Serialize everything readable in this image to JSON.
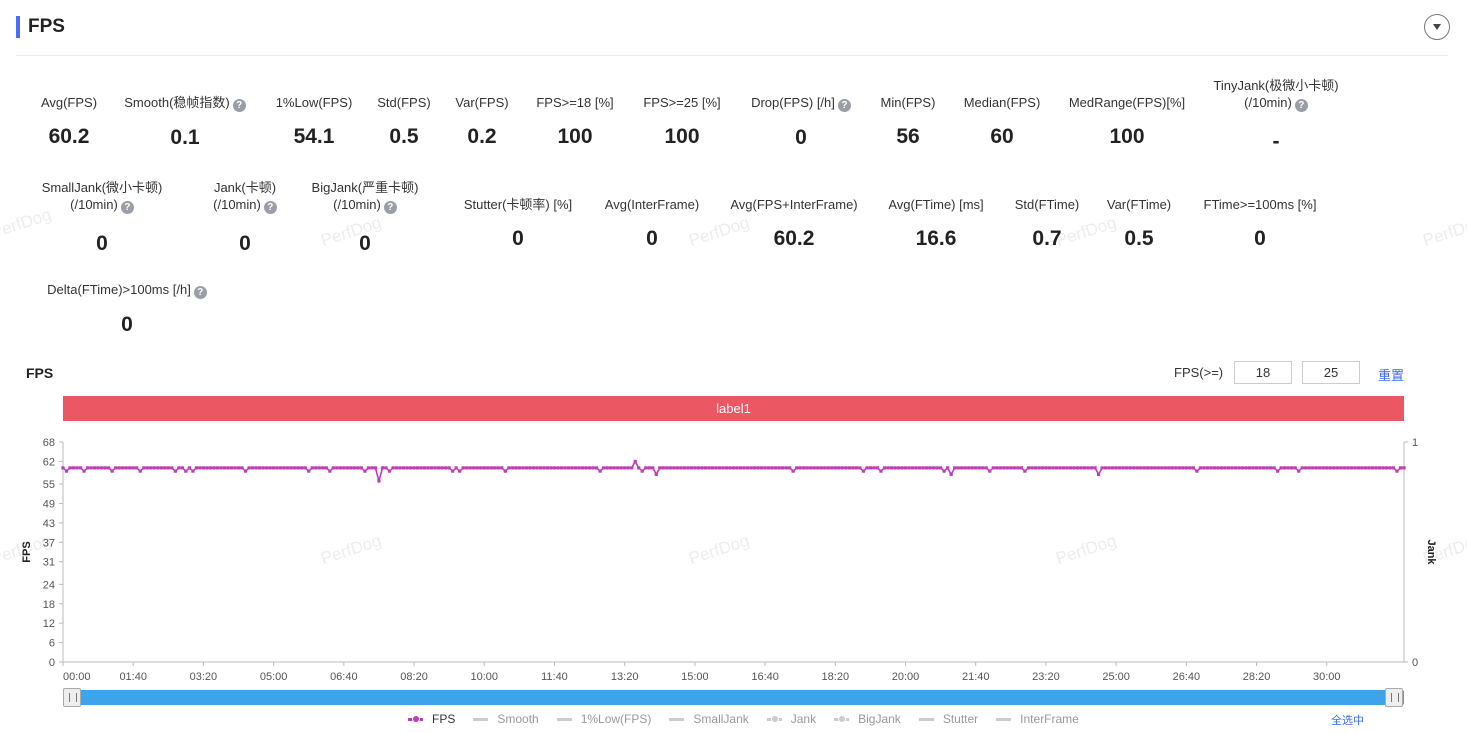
{
  "header": {
    "title": "FPS"
  },
  "stats": [
    {
      "label": "Avg(FPS)",
      "value": "60.2"
    },
    {
      "label": "Smooth(稳帧指数)",
      "value": "0.1"
    },
    {
      "label": "1%Low(FPS)",
      "value": "54.1"
    },
    {
      "label": "Std(FPS)",
      "value": "0.5"
    },
    {
      "label": "Var(FPS)",
      "value": "0.2"
    },
    {
      "label": "FPS>=18 [%]",
      "value": "100"
    },
    {
      "label": "FPS>=25 [%]",
      "value": "100"
    },
    {
      "label": "Drop(FPS) [/h]",
      "value": "0"
    },
    {
      "label": "Min(FPS)",
      "value": "56"
    },
    {
      "label": "Median(FPS)",
      "value": "60"
    },
    {
      "label": "MedRange(FPS)[%]",
      "value": "100"
    },
    {
      "label": "TinyJank(极微小卡顿)",
      "label2": "(/10min)",
      "value": "-"
    },
    {
      "label": "SmallJank(微小卡顿)",
      "label2": "(/10min)",
      "value": "0"
    },
    {
      "label": "Jank(卡顿)",
      "label2": "(/10min)",
      "value": "0"
    },
    {
      "label": "BigJank(严重卡顿)",
      "label2": "(/10min)",
      "value": "0"
    },
    {
      "label": "Stutter(卡顿率) [%]",
      "value": "0"
    },
    {
      "label": "Avg(InterFrame)",
      "value": "0"
    },
    {
      "label": "Avg(FPS+InterFrame)",
      "value": "60.2"
    },
    {
      "label": "Avg(FTime) [ms]",
      "value": "16.6"
    },
    {
      "label": "Std(FTime)",
      "value": "0.7"
    },
    {
      "label": "Var(FTime)",
      "value": "0.5"
    },
    {
      "label": "FTime>=100ms [%]",
      "value": "0"
    },
    {
      "label": "Delta(FTime)>100ms [/h]",
      "value": "0"
    }
  ],
  "help_icon": "question-circle-icon",
  "watermark": "PerfDog",
  "chart_section": {
    "title": "FPS",
    "threshold_label": "FPS(>=)",
    "threshold_1": "18",
    "threshold_2": "25",
    "reset_label": "重置",
    "band_label": "label1",
    "select_all_label": "全选中"
  },
  "colors": {
    "fps": "#c23bb8",
    "band": "#ec5764",
    "slider": "#3da4ea",
    "accent": "#4a6cf7",
    "link": "#3a6df0"
  },
  "chart_data": {
    "type": "line",
    "title": "",
    "x_axis": {
      "label": "",
      "unit": "mm:ss",
      "range": [
        "00:00",
        "31:50"
      ],
      "ticks": [
        "00:00",
        "01:40",
        "03:20",
        "05:00",
        "06:40",
        "08:20",
        "10:00",
        "11:40",
        "13:20",
        "15:00",
        "16:40",
        "18:20",
        "20:00",
        "21:40",
        "23:20",
        "25:00",
        "26:40",
        "28:20",
        "30:00"
      ]
    },
    "y_axis_left": {
      "label": "FPS",
      "ylim": [
        0,
        68
      ],
      "ticks": [
        0,
        6,
        12,
        18,
        24,
        31,
        37,
        43,
        49,
        55,
        62,
        68
      ]
    },
    "y_axis_right": {
      "label": "Jank",
      "ylim": [
        0,
        1
      ],
      "ticks": [
        0,
        1
      ]
    },
    "series": [
      {
        "name": "FPS",
        "baseline": 60,
        "deviations": [
          {
            "t": "00:05",
            "fps": 59
          },
          {
            "t": "00:30",
            "fps": 59
          },
          {
            "t": "01:10",
            "fps": 59
          },
          {
            "t": "01:50",
            "fps": 59
          },
          {
            "t": "02:40",
            "fps": 59
          },
          {
            "t": "02:55",
            "fps": 59
          },
          {
            "t": "03:05",
            "fps": 59
          },
          {
            "t": "04:20",
            "fps": 59
          },
          {
            "t": "05:50",
            "fps": 59
          },
          {
            "t": "06:20",
            "fps": 59
          },
          {
            "t": "07:10",
            "fps": 59
          },
          {
            "t": "07:30",
            "fps": 56
          },
          {
            "t": "07:45",
            "fps": 59
          },
          {
            "t": "09:15",
            "fps": 59
          },
          {
            "t": "09:25",
            "fps": 59
          },
          {
            "t": "10:30",
            "fps": 59
          },
          {
            "t": "12:45",
            "fps": 59
          },
          {
            "t": "13:35",
            "fps": 62
          },
          {
            "t": "13:45",
            "fps": 59
          },
          {
            "t": "14:05",
            "fps": 58
          },
          {
            "t": "17:20",
            "fps": 59
          },
          {
            "t": "19:00",
            "fps": 59
          },
          {
            "t": "19:25",
            "fps": 59
          },
          {
            "t": "20:55",
            "fps": 59
          },
          {
            "t": "21:05",
            "fps": 58
          },
          {
            "t": "22:00",
            "fps": 59
          },
          {
            "t": "22:50",
            "fps": 59
          },
          {
            "t": "24:35",
            "fps": 58
          },
          {
            "t": "26:55",
            "fps": 59
          },
          {
            "t": "28:50",
            "fps": 59
          },
          {
            "t": "29:20",
            "fps": 59
          },
          {
            "t": "31:40",
            "fps": 59
          }
        ]
      }
    ],
    "legend": [
      {
        "name": "FPS",
        "color": "#c23bb8",
        "marker": "dot",
        "active": true
      },
      {
        "name": "Smooth",
        "color": "#cccccc",
        "marker": "line",
        "active": false
      },
      {
        "name": "1%Low(FPS)",
        "color": "#cccccc",
        "marker": "line",
        "active": false
      },
      {
        "name": "SmallJank",
        "color": "#cccccc",
        "marker": "line",
        "active": false
      },
      {
        "name": "Jank",
        "color": "#cccccc",
        "marker": "dot",
        "active": false
      },
      {
        "name": "BigJank",
        "color": "#cccccc",
        "marker": "dot",
        "active": false
      },
      {
        "name": "Stutter",
        "color": "#cccccc",
        "marker": "line",
        "active": false
      },
      {
        "name": "InterFrame",
        "color": "#cccccc",
        "marker": "line",
        "active": false
      }
    ],
    "legend_placement": "bottom",
    "grid": false
  }
}
